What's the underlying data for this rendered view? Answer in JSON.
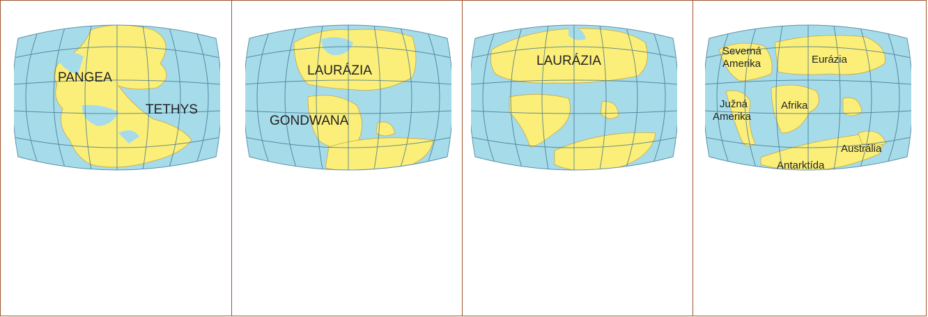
{
  "colors": {
    "ocean": "#a6dce9",
    "land": "#fbef7a",
    "grid": "#3a6d8a",
    "border": "#a0522d"
  },
  "panels": [
    {
      "labels": {
        "pangea": "PANGEA",
        "tethys": "TETHYS"
      }
    },
    {
      "labels": {
        "laurazia": "LAURÁZIA",
        "gondwana": "GONDWANA"
      }
    },
    {
      "labels": {
        "laurazia": "LAURÁZIA"
      }
    },
    {
      "labels": {
        "severna": "Severná",
        "amerika_n": "Amerika",
        "eurazia": "Eurázia",
        "juzna": "Južná",
        "amerika_s": "Amerika",
        "afrika": "Afrika",
        "australia": "Austrália",
        "antarktida": "Antarktída"
      }
    }
  ]
}
